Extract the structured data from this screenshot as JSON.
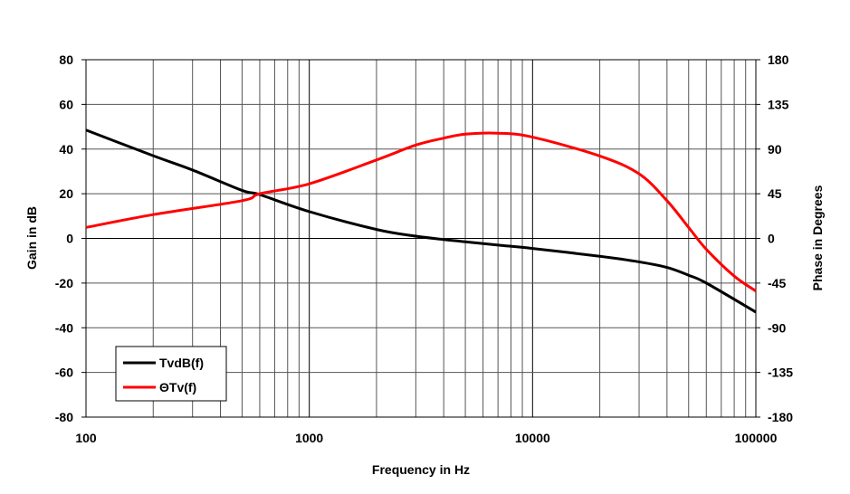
{
  "chart_data": {
    "type": "line",
    "xlabel": "Frequency in Hz",
    "ylabel": "Gain in dB",
    "y2label": "Phase in Degrees",
    "x_scale": "log",
    "xlim": [
      100,
      100000
    ],
    "ylim": [
      -80,
      80
    ],
    "y2lim": [
      -180,
      180
    ],
    "grid": true,
    "legend_position": "bottom-left",
    "x_ticks": [
      "100",
      "1000",
      "10000",
      "100000"
    ],
    "x_tick_values": [
      100,
      1000,
      10000,
      100000
    ],
    "y_ticks": [
      "80",
      "60",
      "40",
      "20",
      "0",
      "-20",
      "-40",
      "-60",
      "-80"
    ],
    "y_tick_values": [
      80,
      60,
      40,
      20,
      0,
      -20,
      -40,
      -60,
      -80
    ],
    "y2_ticks": [
      "180",
      "135",
      "90",
      "45",
      "0",
      "-45",
      "-90",
      "-135",
      "-180"
    ],
    "y2_tick_values": [
      180,
      135,
      90,
      45,
      0,
      -45,
      -90,
      -135,
      -180
    ],
    "series": [
      {
        "name": "TvdB(f)",
        "axis": "left",
        "color": "#000000",
        "x": [
          100,
          200,
          300,
          500,
          600,
          1000,
          2000,
          3000,
          4000,
          5000,
          7000,
          10000,
          20000,
          30000,
          40000,
          50000,
          60000,
          100000
        ],
        "y": [
          48.5,
          37,
          30.6,
          21.5,
          19.6,
          12,
          4,
          1,
          -0.5,
          -1.5,
          -3,
          -4.5,
          -8,
          -10.5,
          -13,
          -16.5,
          -20,
          -33
        ]
      },
      {
        "name": "ΘTv(f)",
        "axis": "right",
        "color": "#ff0000",
        "x": [
          100,
          200,
          500,
          600,
          1000,
          2000,
          3000,
          4000,
          5000,
          7000,
          10000,
          20000,
          30000,
          40000,
          50000,
          60000,
          80000,
          100000
        ],
        "y": [
          11,
          24,
          38,
          45,
          55,
          79,
          94,
          101,
          105,
          106,
          102,
          83,
          65,
          38,
          11,
          -11,
          -38,
          -53
        ]
      }
    ]
  }
}
